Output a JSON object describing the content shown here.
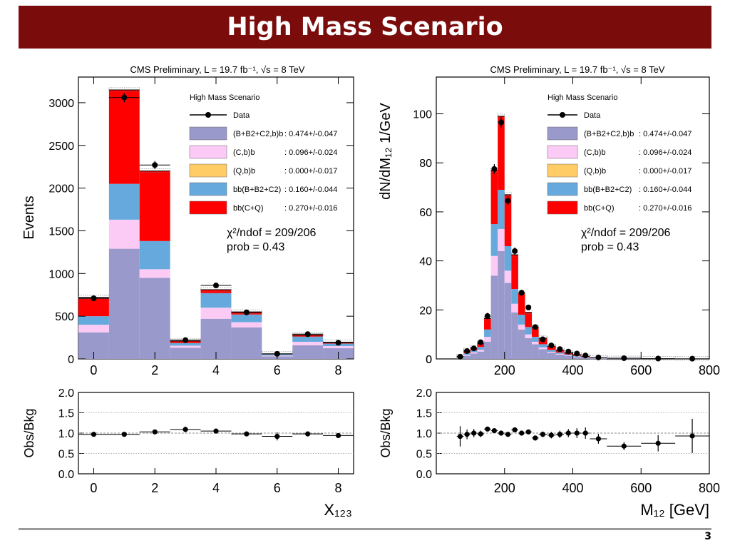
{
  "slide": {
    "title": "High Mass Scenario",
    "page": "3"
  },
  "colors": {
    "banner": "#7a0c0c",
    "comp_BB2C2_b": "#9999cc",
    "comp_C_b": "#fccbf5",
    "comp_Q_b": "#ffcc66",
    "comp_bb_BB2C2": "#66aadd",
    "comp_bb_CQ": "#ff0000"
  },
  "chart_data": [
    {
      "type": "bar",
      "stacked": true,
      "title": "CMS Preliminary, L = 19.7 fb⁻¹, √s = 8 TeV",
      "xlabel": "X₁₂₃",
      "ylabel": "Events",
      "xlim": [
        -0.5,
        8.5
      ],
      "ylim": [
        0,
        3300
      ],
      "xticks": [
        0,
        2,
        4,
        6,
        8
      ],
      "yticks": [
        0,
        500,
        1000,
        1500,
        2000,
        2500,
        3000
      ],
      "bins": [
        0,
        1,
        2,
        3,
        4,
        5,
        6,
        7,
        8
      ],
      "series": [
        {
          "name": "(B+B2+C2,b)b",
          "values": [
            310,
            1290,
            950,
            130,
            470,
            370,
            30,
            160,
            125
          ]
        },
        {
          "name": "(C,b)b",
          "values": [
            90,
            340,
            100,
            25,
            130,
            60,
            10,
            40,
            25
          ]
        },
        {
          "name": "(Q,b)b",
          "values": [
            0,
            0,
            0,
            0,
            0,
            0,
            0,
            0,
            0
          ]
        },
        {
          "name": "bb(B+B2+C2)",
          "values": [
            100,
            420,
            330,
            30,
            170,
            90,
            15,
            60,
            30
          ]
        },
        {
          "name": "bb(C+Q)",
          "values": [
            220,
            1100,
            820,
            25,
            40,
            30,
            5,
            20,
            15
          ]
        }
      ],
      "data": {
        "name": "Data",
        "values": [
          710,
          3060,
          2270,
          220,
          860,
          545,
          60,
          290,
          190
        ],
        "errors": [
          27,
          55,
          48,
          15,
          29,
          23,
          8,
          17,
          14
        ]
      },
      "legend": {
        "header": "High Mass Scenario",
        "entries": [
          {
            "label": "Data",
            "value": ""
          },
          {
            "label": "(B+B2+C2,b)b",
            "value": ": 0.474+/-0.047"
          },
          {
            "label": "(C,b)b",
            "value": ": 0.096+/-0.024"
          },
          {
            "label": "(Q,b)b",
            "value": ": 0.000+/-0.017"
          },
          {
            "label": "bb(B+B2+C2)",
            "value": ": 0.160+/-0.044"
          },
          {
            "label": "bb(C+Q)",
            "value": ": 0.270+/-0.016"
          }
        ],
        "placement": "top-right"
      },
      "stats": {
        "chi2": "χ²/ndof = 209/206",
        "prob": "prob = 0.43"
      },
      "ratio": {
        "ylabel": "Obs/Bkg",
        "ylim": [
          0,
          2
        ],
        "yticks": [
          "0.0",
          "0.5",
          "1.0",
          "1.5",
          "2.0"
        ],
        "x": [
          0,
          1,
          2,
          3,
          4,
          5,
          6,
          7,
          8
        ],
        "values": [
          0.97,
          0.97,
          1.03,
          1.09,
          1.05,
          0.98,
          0.92,
          0.98,
          0.94
        ],
        "errors": [
          0.04,
          0.03,
          0.03,
          0.07,
          0.04,
          0.04,
          0.1,
          0.05,
          0.06
        ]
      }
    },
    {
      "type": "bar",
      "stacked": true,
      "title": "CMS Preliminary, L = 19.7 fb⁻¹, √s = 8 TeV",
      "xlabel": "M₁₂ [GeV]",
      "ylabel": "dN/dM₁₂ 1/GeV",
      "xlim": [
        0,
        800
      ],
      "ylim": [
        0,
        115
      ],
      "xticks": [
        200,
        400,
        600,
        800
      ],
      "yticks": [
        0,
        20,
        40,
        60,
        80,
        100
      ],
      "bin_edges": [
        60,
        80,
        100,
        120,
        140,
        160,
        180,
        200,
        220,
        240,
        260,
        280,
        300,
        325,
        350,
        375,
        400,
        425,
        450,
        500,
        600,
        700,
        800
      ],
      "series": [
        {
          "name": "(B+B2+C2,b)b",
          "values": [
            0.4,
            1.3,
            2.2,
            3.0,
            7.0,
            34.0,
            44.0,
            31.0,
            19.0,
            12.0,
            8.5,
            6.0,
            4.0,
            2.5,
            1.8,
            1.2,
            0.8,
            0.5,
            0.25,
            0.12,
            0.06,
            0.03
          ]
        },
        {
          "name": "(C,b)b",
          "values": [
            0.1,
            0.4,
            0.5,
            0.7,
            2.0,
            8.0,
            9.0,
            5.0,
            3.5,
            2.0,
            1.5,
            1.0,
            0.7,
            0.4,
            0.3,
            0.2,
            0.15,
            0.1,
            0.05,
            0.03,
            0.01,
            0.0
          ]
        },
        {
          "name": "(Q,b)b",
          "values": [
            0,
            0,
            0,
            0,
            0,
            0,
            0,
            0,
            0,
            0,
            0,
            0,
            0,
            0,
            0,
            0,
            0,
            0,
            0,
            0,
            0,
            0
          ]
        },
        {
          "name": "bb(B+B2+C2)",
          "values": [
            0.2,
            0.6,
            0.8,
            1.2,
            3.0,
            13.0,
            16.0,
            10.0,
            6.0,
            4.0,
            3.0,
            2.0,
            1.3,
            0.8,
            0.5,
            0.4,
            0.3,
            0.2,
            0.1,
            0.05,
            0.02,
            0.01
          ]
        },
        {
          "name": "bb(C+Q)",
          "values": [
            0.3,
            1.2,
            1.0,
            1.5,
            4.5,
            22.0,
            30.0,
            21.0,
            14.0,
            9.0,
            6.0,
            4.0,
            2.5,
            1.5,
            1.0,
            0.7,
            0.5,
            0.3,
            0.15,
            0.08,
            0.03,
            0.01
          ]
        }
      ],
      "data": {
        "name": "Data",
        "x": [
          70,
          90,
          110,
          130,
          150,
          170,
          190,
          210,
          230,
          250,
          270,
          290,
          312,
          337,
          362,
          387,
          412,
          437,
          475,
          550,
          650,
          750
        ],
        "values": [
          0.9,
          3.2,
          4.3,
          6.8,
          17.5,
          77.5,
          96.5,
          64.5,
          44.0,
          27.0,
          21.0,
          13.0,
          8.0,
          5.5,
          4.0,
          3.0,
          2.2,
          1.4,
          0.6,
          0.3,
          0.15,
          0.1
        ],
        "errors": [
          0.3,
          0.5,
          0.6,
          0.8,
          1.3,
          2.0,
          2.2,
          1.8,
          1.5,
          1.2,
          1.0,
          0.8,
          0.6,
          0.5,
          0.4,
          0.35,
          0.3,
          0.2,
          0.1,
          0.05,
          0.03,
          0.03
        ]
      },
      "legend": {
        "header": "High Mass Scenario",
        "entries": [
          {
            "label": "Data",
            "value": ""
          },
          {
            "label": "(B+B2+C2,b)b",
            "value": ": 0.474+/-0.047"
          },
          {
            "label": "(C,b)b",
            "value": ": 0.096+/-0.024"
          },
          {
            "label": "(Q,b)b",
            "value": ": 0.000+/-0.017"
          },
          {
            "label": "bb(B+B2+C2)",
            "value": ": 0.160+/-0.044"
          },
          {
            "label": "bb(C+Q)",
            "value": ": 0.270+/-0.016"
          }
        ],
        "placement": "top-right"
      },
      "stats": {
        "chi2": "χ²/ndof = 209/206",
        "prob": "prob = 0.43"
      },
      "ratio": {
        "ylabel": "Obs/Bkg",
        "ylim": [
          0,
          2
        ],
        "yticks": [
          "0.0",
          "0.5",
          "1.0",
          "1.5",
          "2.0"
        ],
        "x": [
          70,
          90,
          110,
          130,
          150,
          170,
          190,
          210,
          230,
          250,
          270,
          290,
          312,
          337,
          362,
          387,
          412,
          437,
          475,
          550,
          650,
          750
        ],
        "values": [
          0.92,
          0.97,
          1.0,
          0.98,
          1.1,
          1.06,
          1.0,
          0.97,
          1.08,
          1.0,
          1.03,
          0.88,
          0.97,
          0.95,
          0.97,
          1.0,
          1.0,
          1.0,
          0.86,
          0.68,
          0.75,
          0.93
        ],
        "errors": [
          0.25,
          0.12,
          0.1,
          0.08,
          0.05,
          0.03,
          0.03,
          0.03,
          0.04,
          0.04,
          0.05,
          0.06,
          0.07,
          0.08,
          0.09,
          0.1,
          0.12,
          0.14,
          0.12,
          0.1,
          0.2,
          0.42
        ],
        "xerr": [
          10,
          10,
          10,
          10,
          10,
          10,
          10,
          10,
          10,
          10,
          10,
          10,
          12,
          12,
          12,
          12,
          12,
          12,
          25,
          50,
          50,
          50
        ]
      }
    }
  ]
}
